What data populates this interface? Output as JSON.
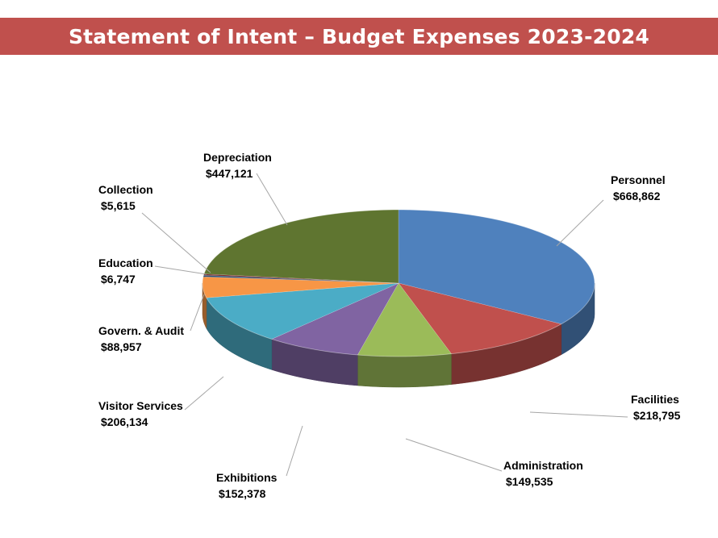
{
  "title": "Statement of Intent – Budget Expenses 2023-2024",
  "chart_data": {
    "type": "pie",
    "style": "3d",
    "title": "Statement of Intent – Budget Expenses 2023-2024",
    "legend": "none",
    "slices": [
      {
        "name": "Personnel",
        "value": 668862,
        "label": "$668,862",
        "color": "#4f81bd"
      },
      {
        "name": "Facilities",
        "value": 218795,
        "label": "$218,795",
        "color": "#c0504d"
      },
      {
        "name": "Administration",
        "value": 149535,
        "label": "$149,535",
        "color": "#9bbb59"
      },
      {
        "name": "Exhibitions",
        "value": 152378,
        "label": "$152,378",
        "color": "#8064a2"
      },
      {
        "name": "Visitor Services",
        "value": 206134,
        "label": "$206,134",
        "color": "#4bacc6"
      },
      {
        "name": "Govern. & Audit",
        "value": 88957,
        "label": "$88,957",
        "color": "#f79646"
      },
      {
        "name": "Education",
        "value": 6747,
        "label": "$6,747",
        "color": "#2c4d75"
      },
      {
        "name": "Collection",
        "value": 5615,
        "label": "$5,615",
        "color": "#772c2a"
      },
      {
        "name": "Depreciation",
        "value": 447121,
        "label": "$447,121",
        "color": "#5f7530"
      }
    ]
  }
}
